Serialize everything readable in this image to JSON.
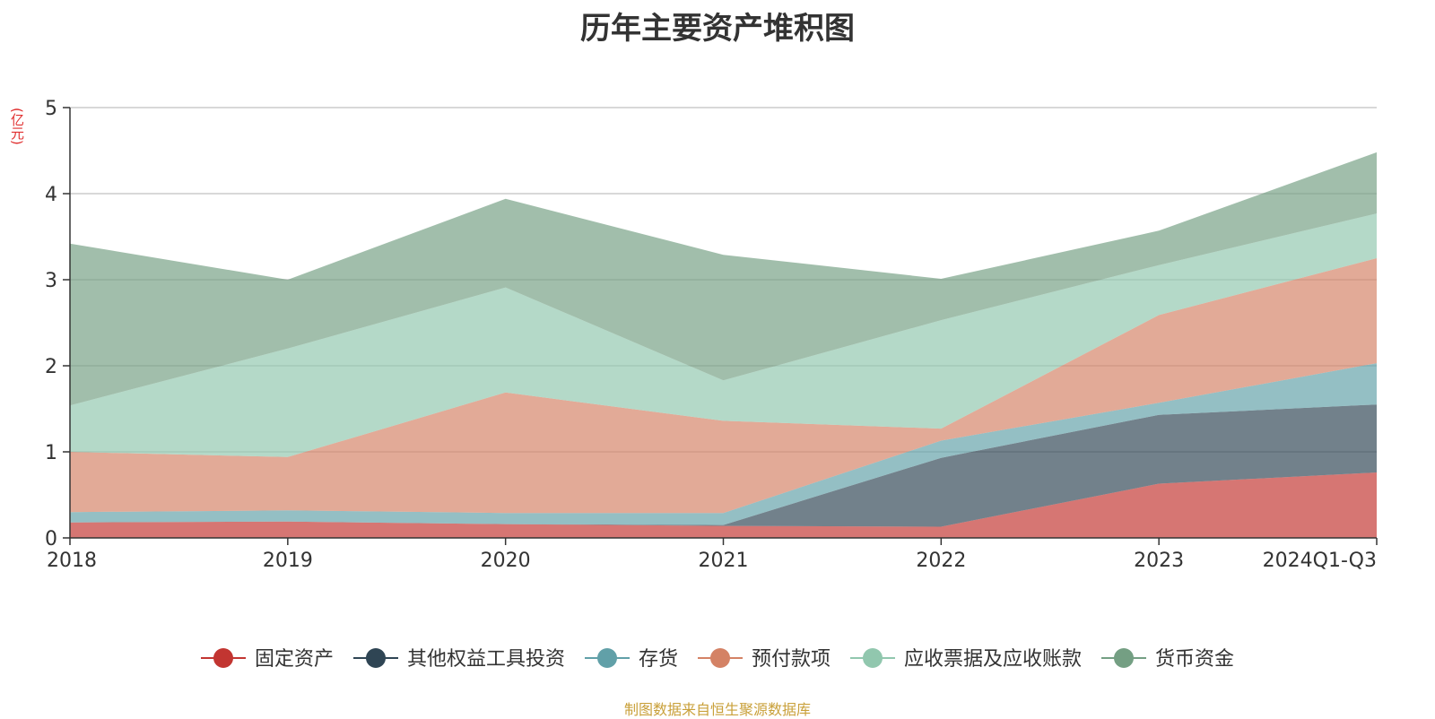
{
  "chart_data": {
    "type": "area",
    "stacked": true,
    "title": "历年主要资产堆积图",
    "ylabel": "(亿元)",
    "xlabel": "",
    "ylim": [
      0,
      5
    ],
    "yticks": [
      0,
      1,
      2,
      3,
      4,
      5
    ],
    "categories": [
      "2018",
      "2019",
      "2020",
      "2021",
      "2022",
      "2023",
      "2024Q1-Q3"
    ],
    "grid": true,
    "legend_position": "bottom",
    "series": [
      {
        "name": "固定资产",
        "color": "#c23531",
        "values": [
          0.18,
          0.19,
          0.16,
          0.14,
          0.13,
          0.63,
          0.76
        ]
      },
      {
        "name": "其他权益工具投资",
        "color": "#2f4554",
        "values": [
          0.0,
          0.0,
          0.0,
          0.01,
          0.8,
          0.8,
          0.79
        ]
      },
      {
        "name": "存货",
        "color": "#61a0a8",
        "values": [
          0.12,
          0.13,
          0.13,
          0.14,
          0.2,
          0.14,
          0.48
        ]
      },
      {
        "name": "预付款项",
        "color": "#d48265",
        "values": [
          0.7,
          0.62,
          1.4,
          1.07,
          0.14,
          1.02,
          1.22
        ]
      },
      {
        "name": "应收票据及应收账款",
        "color": "#91c7ae",
        "values": [
          0.54,
          1.26,
          1.22,
          0.47,
          1.26,
          0.58,
          0.52
        ]
      },
      {
        "name": "货币资金",
        "color": "#749f83",
        "values": [
          1.88,
          0.8,
          1.03,
          1.46,
          0.48,
          0.4,
          0.71
        ]
      }
    ],
    "source_note": "制图数据来自恒生聚源数据库"
  }
}
